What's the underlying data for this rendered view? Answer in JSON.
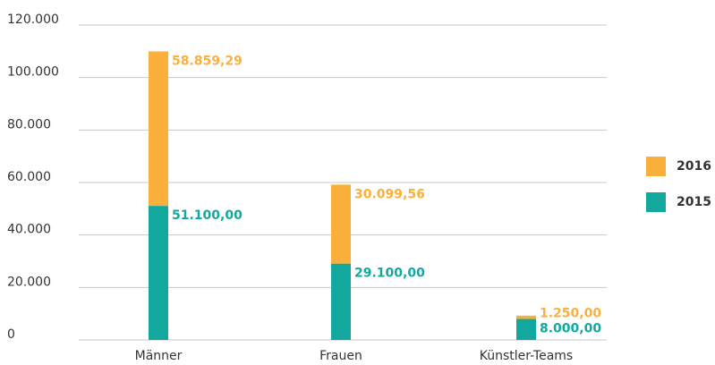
{
  "chart_data": {
    "type": "stacked_bar",
    "categories": [
      "Männer",
      "Frauen",
      "Künstler-Teams"
    ],
    "series": [
      {
        "name": "2015",
        "color": "#13a89e",
        "values": [
          51100,
          29100,
          8000
        ],
        "value_labels": [
          "51.100,00",
          "29.100,00",
          "8.000,00"
        ]
      },
      {
        "name": "2016",
        "color": "#fbb03b",
        "values": [
          58859.29,
          30099.56,
          1250
        ],
        "value_labels": [
          "58.859,29",
          "30.099,56",
          "1.250,00"
        ]
      }
    ],
    "ylim": [
      0,
      120000
    ],
    "yticks": [
      0,
      {
        "value": 20000,
        "label": "20.000"
      },
      {
        "value": 40000,
        "label": "40.000"
      },
      {
        "value": 60000,
        "label": "60.000"
      },
      {
        "value": 80000,
        "label": "80.000"
      },
      {
        "value": 100000,
        "label": "100.000"
      },
      {
        "value": 120000,
        "label": "120.000"
      }
    ],
    "grid": true,
    "legend": "right"
  }
}
